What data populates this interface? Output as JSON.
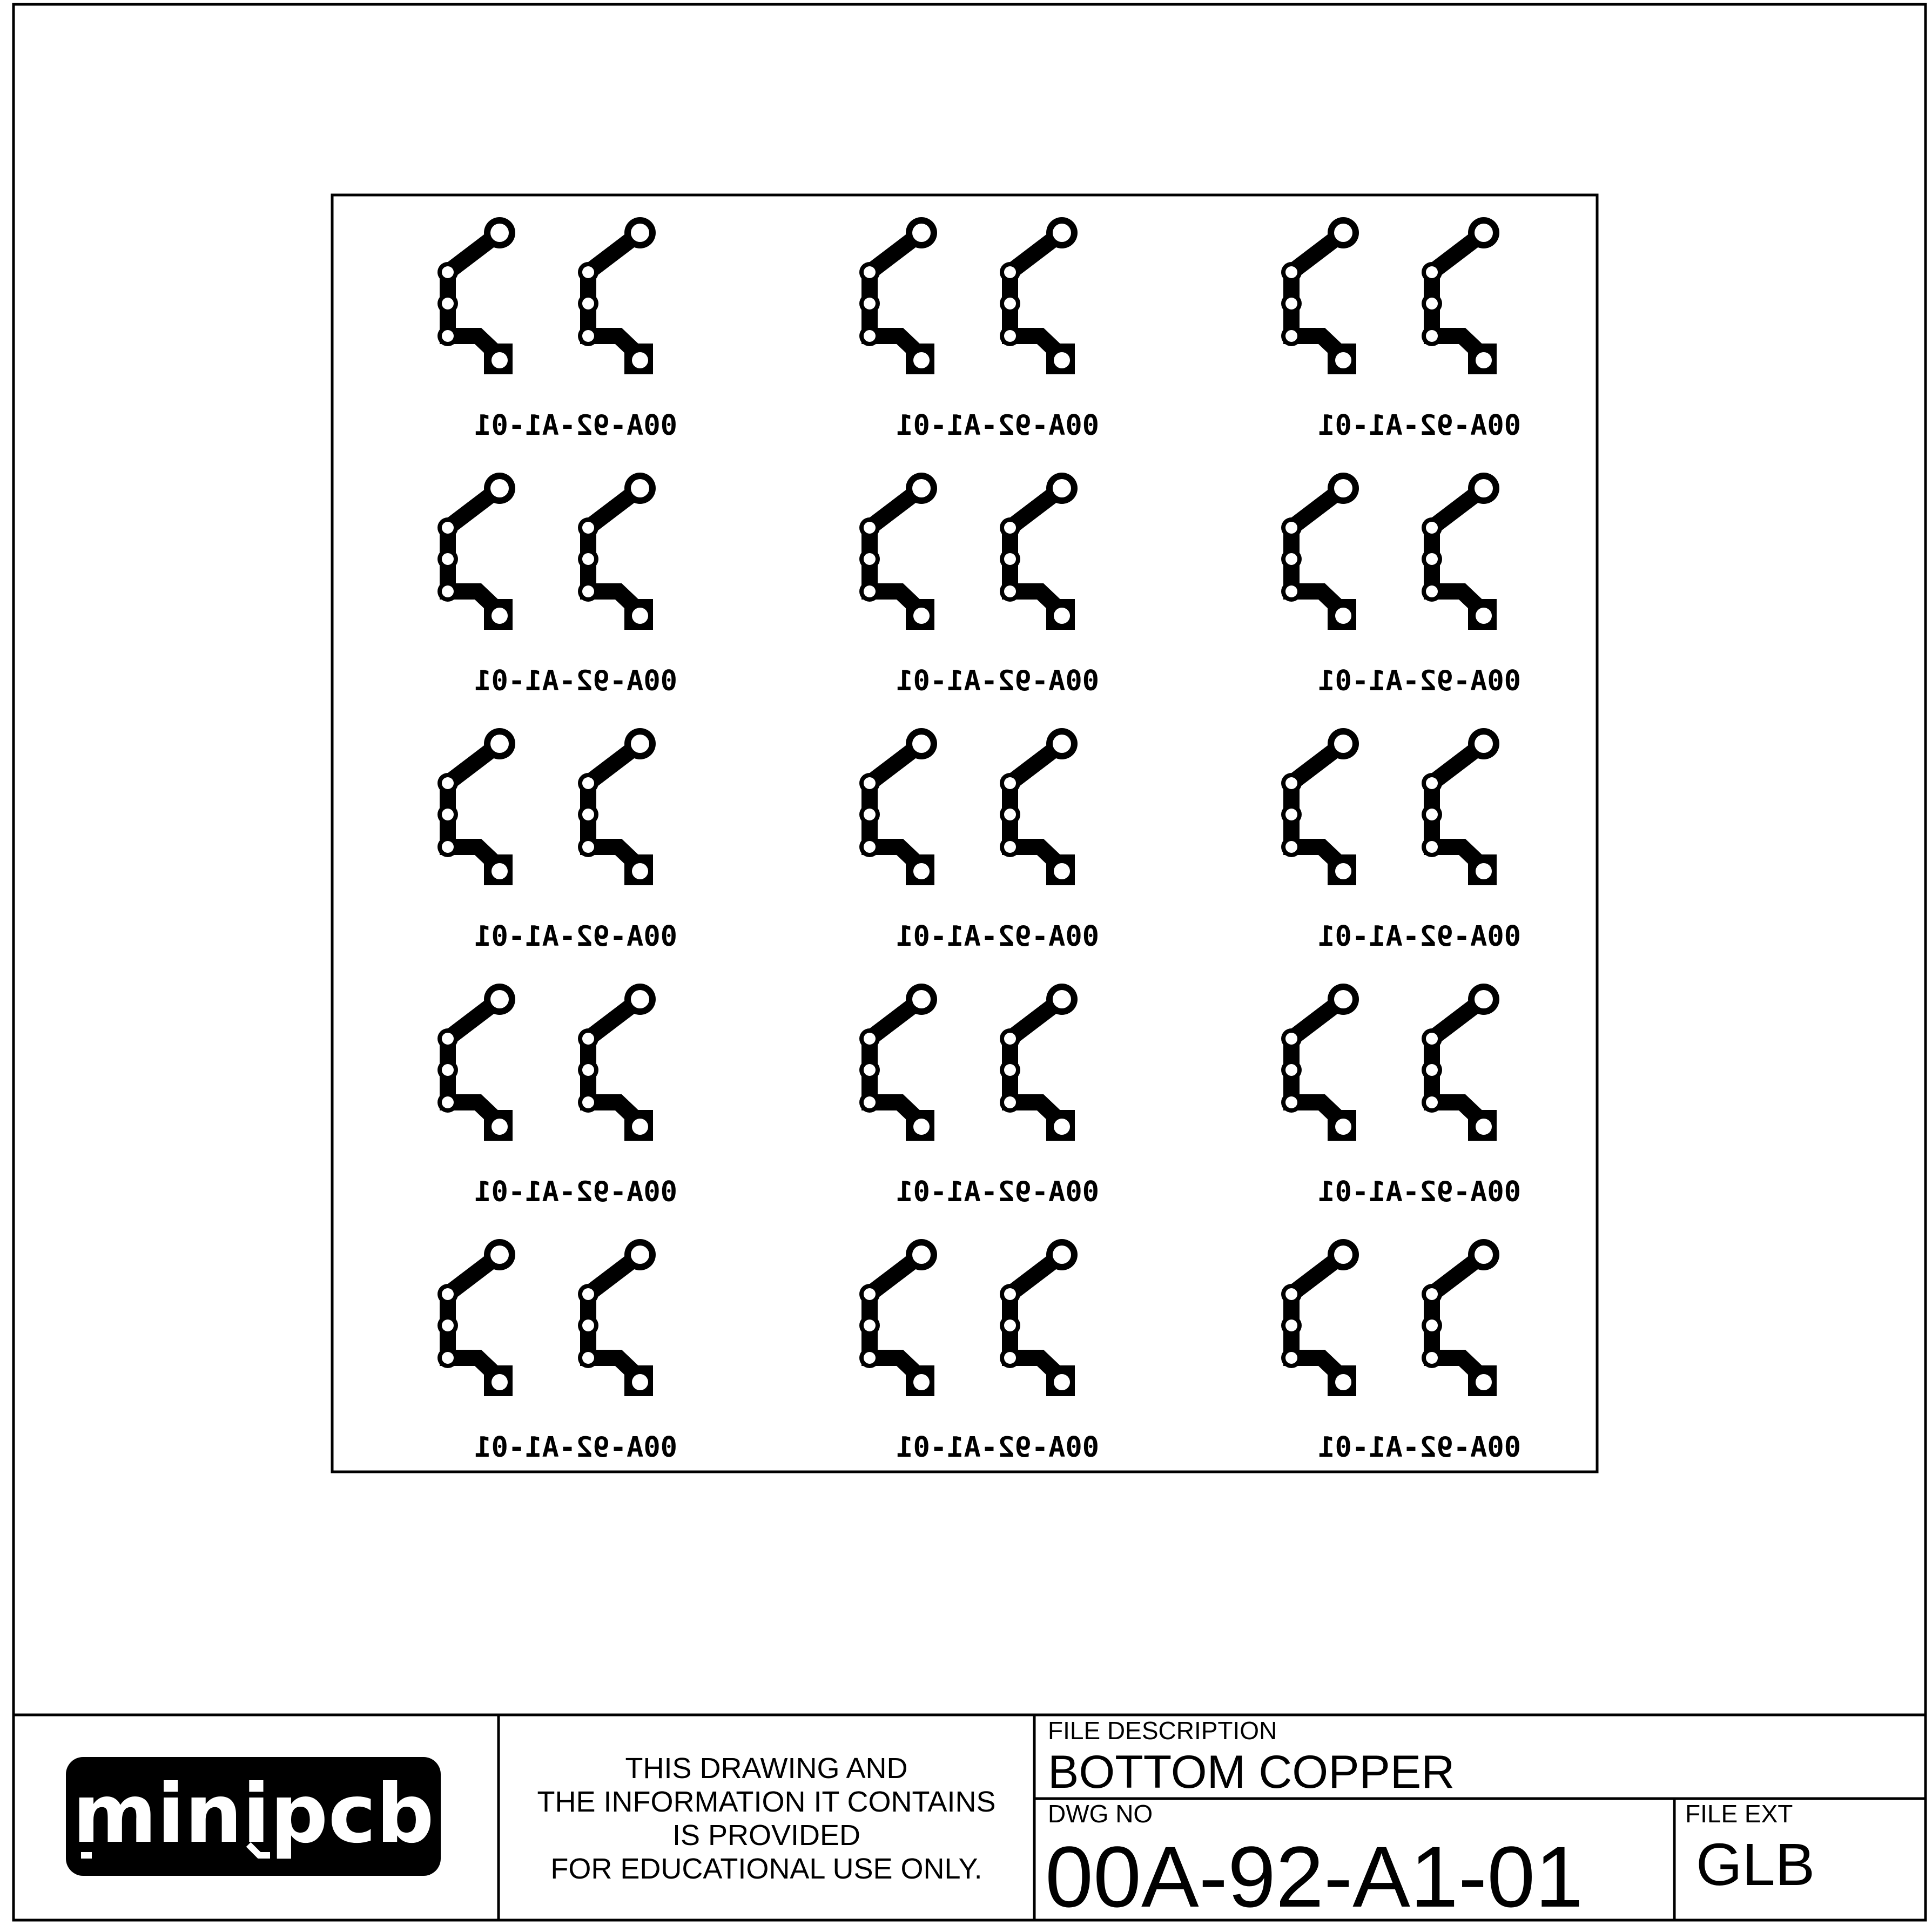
{
  "panel": {
    "rows": 5,
    "columns": 3,
    "pcb_label": "00A-92-A1-01",
    "label_mirrored": true
  },
  "title_block": {
    "logo_text": "minipcb",
    "disclaimer": [
      "THIS DRAWING AND",
      "THE INFORMATION IT CONTAINS",
      "IS PROVIDED",
      "FOR EDUCATIONAL USE ONLY."
    ],
    "file_description_label": "FILE DESCRIPTION",
    "file_description": "BOTTOM COPPER",
    "dwg_no_label": "DWG NO",
    "dwg_no": "00A-92-A1-01",
    "file_ext_label": "FILE EXT",
    "file_ext": "GLB"
  },
  "colors": {
    "ink": "#000000",
    "paper": "#ffffff"
  }
}
